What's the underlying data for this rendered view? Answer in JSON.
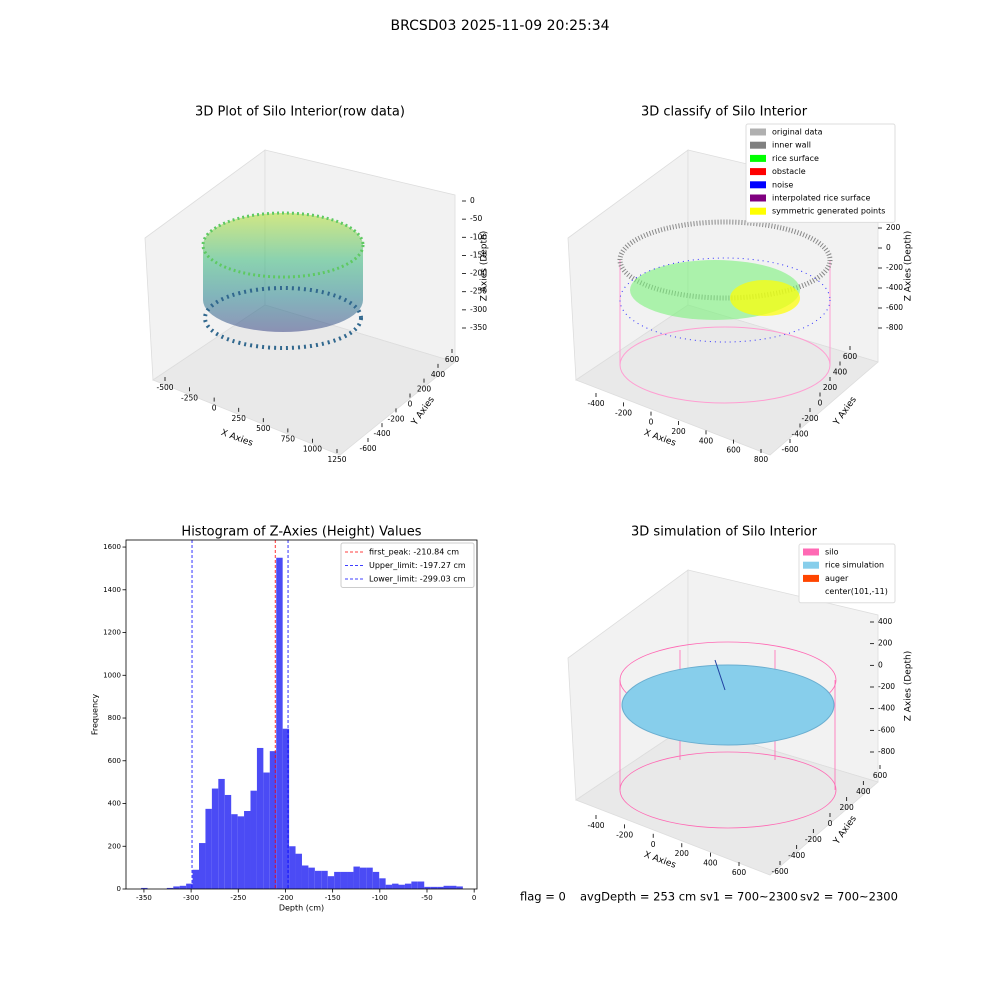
{
  "title": "BRCSD03 2025-11-09 20:25:34",
  "chart_data": [
    {
      "type": "scatter3d",
      "title": "3D Plot of Silo Interior(row data)",
      "xlabel": "X Axies",
      "ylabel": "Y Axies",
      "zlabel": "Z Axies (Depth)",
      "xticks": [
        -500,
        -250,
        0,
        250,
        500,
        750,
        1000,
        1250
      ],
      "yticks": [
        -600,
        -400,
        -200,
        0,
        200,
        400,
        600
      ],
      "zticks": [
        0,
        -50,
        -100,
        -150,
        -200,
        -250,
        -300,
        -350
      ],
      "grid": true
    },
    {
      "type": "scatter3d",
      "title": "3D classify of Silo Interior",
      "xlabel": "X Axies",
      "ylabel": "Y Axies",
      "zlabel": "Z Axies (Depth)",
      "xticks": [
        -400,
        -200,
        0,
        200,
        400,
        600,
        800
      ],
      "yticks": [
        -600,
        -400,
        -200,
        0,
        200,
        400,
        600
      ],
      "zticks": [
        200,
        0,
        -200,
        -400,
        -600,
        -800
      ],
      "grid": true,
      "legend": [
        {
          "name": "original data",
          "color": "#b0b0b0"
        },
        {
          "name": "inner wall",
          "color": "#808080"
        },
        {
          "name": "rice surface",
          "color": "#00ff00"
        },
        {
          "name": "obstacle",
          "color": "#ff0000"
        },
        {
          "name": "noise",
          "color": "#0000ff"
        },
        {
          "name": "interpolated rice surface",
          "color": "#800080"
        },
        {
          "name": "symmetric generated points",
          "color": "#ffff00"
        }
      ]
    },
    {
      "type": "histogram",
      "title": "Histogram of Z-Axies (Height) Values",
      "xlabel": "Depth (cm)",
      "ylabel": "Frequency",
      "color": "#4b4bf5",
      "bins": [
        -353,
        -346.18,
        -339.36,
        -332.54,
        -325.72,
        -318.9,
        -312.08,
        -305.26,
        -298.44,
        -291.62,
        -284.8,
        -277.98,
        -271.16,
        -264.34,
        -257.52,
        -250.7,
        -243.88,
        -237.06,
        -230.24,
        -223.42,
        -216.6,
        -209.78,
        -202.96,
        -196.14,
        -189.32,
        -182.5,
        -175.68,
        -168.86,
        -162.04,
        -155.22,
        -148.4,
        -141.58,
        -134.76,
        -127.94,
        -121.12,
        -114.3,
        -107.48,
        -100.66,
        -93.84,
        -87.02,
        -80.2,
        -73.38,
        -66.56,
        -59.74,
        -52.92,
        -46.1,
        -39.28,
        -32.46,
        -25.64,
        -18.82,
        -12
      ],
      "values": [
        5,
        0,
        0,
        0,
        5,
        12,
        15,
        25,
        90,
        215,
        375,
        470,
        515,
        440,
        350,
        340,
        365,
        460,
        660,
        545,
        645,
        1550,
        750,
        200,
        165,
        110,
        100,
        85,
        85,
        60,
        80,
        80,
        80,
        105,
        100,
        100,
        80,
        50,
        20,
        25,
        20,
        25,
        35,
        35,
        10,
        10,
        10,
        15,
        15,
        12
      ],
      "xlim": [
        -369,
        3
      ],
      "ylim": [
        0,
        1633
      ],
      "xticks": [
        -350,
        -300,
        -250,
        -200,
        -150,
        -100,
        -50,
        0
      ],
      "yticks": [
        0,
        200,
        400,
        600,
        800,
        1000,
        1200,
        1400,
        1600
      ],
      "lines": [
        {
          "name": "first_peak: -210.84 cm",
          "value": -210.84,
          "color": "#ff0000"
        },
        {
          "name": "Upper_limit: -197.27 cm",
          "value": -197.27,
          "color": "#0000ff"
        },
        {
          "name": "Lower_limit: -299.03 cm",
          "value": -299.03,
          "color": "#0000ff"
        }
      ],
      "legend_loc": "upper right"
    },
    {
      "type": "scatter3d",
      "title": "3D simulation of Silo Interior",
      "xlabel": "X Axies",
      "ylabel": "Y Axies",
      "zlabel": "Z Axies (Depth)",
      "xticks": [
        -400,
        -200,
        0,
        200,
        400,
        600
      ],
      "yticks": [
        -600,
        -400,
        -200,
        0,
        200,
        400,
        600
      ],
      "zticks": [
        400,
        200,
        0,
        -200,
        -400,
        -600,
        -800
      ],
      "grid": true,
      "legend": [
        {
          "name": "silo",
          "color": "#ff69b4"
        },
        {
          "name": "rice simulation",
          "color": "#87ceeb"
        },
        {
          "name": "auger",
          "color": "#ff4500"
        },
        {
          "name": "center(101,-11)",
          "color": "#ffffff"
        }
      ]
    }
  ],
  "status": [
    "flag = 0",
    "avgDepth = 253 cm",
    "sv1 = 700~2300",
    "sv2 = 700~2300"
  ]
}
